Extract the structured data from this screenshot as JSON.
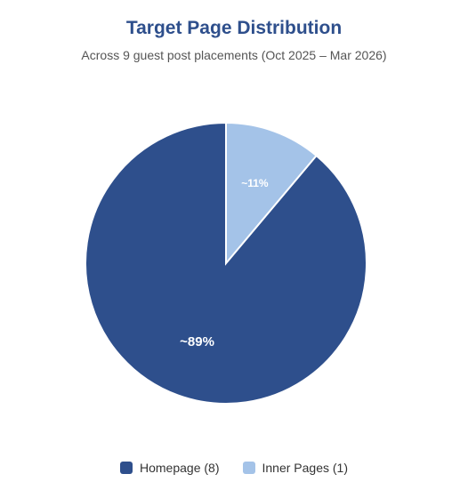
{
  "chart_data": {
    "type": "pie",
    "title": "Target Page Distribution",
    "subtitle": "Across 9 guest post placements (Oct 2025 – Mar 2026)",
    "slices": [
      {
        "label": "Homepage (8)",
        "value": 8,
        "data_label": "~89%",
        "color": "#2e4f8c"
      },
      {
        "label": "Inner Pages (1)",
        "value": 1,
        "data_label": "~11%",
        "color": "#a4c3e8"
      }
    ],
    "legend_position": "bottom"
  }
}
